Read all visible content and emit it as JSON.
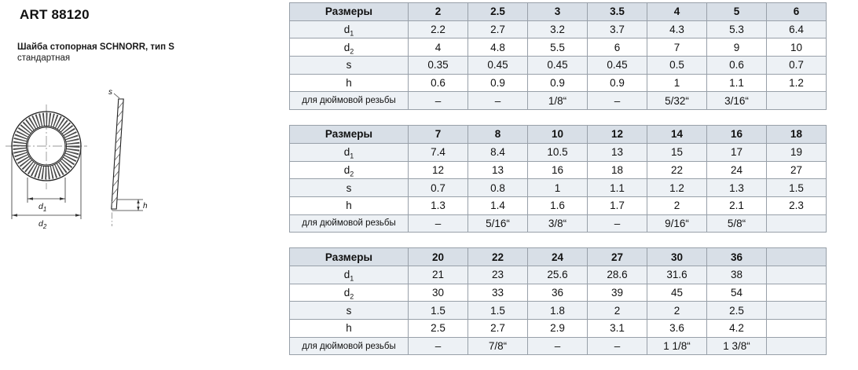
{
  "page": {
    "art_number": "ART 88120",
    "product_name": "Шайба стопорная SCHNORR, тип S",
    "product_variant": "стандартная"
  },
  "drawing": {
    "d1_label": "d",
    "d1_sub": "1",
    "d2_label": "d",
    "d2_sub": "2",
    "s_label": "s",
    "h_label": "h"
  },
  "tables": [
    {
      "corner_label": "Размеры",
      "columns": [
        "2",
        "2.5",
        "3",
        "3.5",
        "4",
        "5",
        "6"
      ],
      "rows": [
        {
          "label": "d",
          "sub": "1",
          "values": [
            "2.2",
            "2.7",
            "3.2",
            "3.7",
            "4.3",
            "5.3",
            "6.4"
          ]
        },
        {
          "label": "d",
          "sub": "2",
          "values": [
            "4",
            "4.8",
            "5.5",
            "6",
            "7",
            "9",
            "10"
          ]
        },
        {
          "label": "s",
          "sub": "",
          "values": [
            "0.35",
            "0.45",
            "0.45",
            "0.45",
            "0.5",
            "0.6",
            "0.7"
          ]
        },
        {
          "label": "h",
          "sub": "",
          "values": [
            "0.6",
            "0.9",
            "0.9",
            "0.9",
            "1",
            "1.1",
            "1.2"
          ]
        },
        {
          "label": "для дюймовой резьбы",
          "sub": "",
          "values": [
            "–",
            "–",
            "1/8“",
            "–",
            "5/32“",
            "3/16“",
            ""
          ]
        }
      ]
    },
    {
      "corner_label": "Размеры",
      "columns": [
        "7",
        "8",
        "10",
        "12",
        "14",
        "16",
        "18"
      ],
      "rows": [
        {
          "label": "d",
          "sub": "1",
          "values": [
            "7.4",
            "8.4",
            "10.5",
            "13",
            "15",
            "17",
            "19"
          ]
        },
        {
          "label": "d",
          "sub": "2",
          "values": [
            "12",
            "13",
            "16",
            "18",
            "22",
            "24",
            "27"
          ]
        },
        {
          "label": "s",
          "sub": "",
          "values": [
            "0.7",
            "0.8",
            "1",
            "1.1",
            "1.2",
            "1.3",
            "1.5"
          ]
        },
        {
          "label": "h",
          "sub": "",
          "values": [
            "1.3",
            "1.4",
            "1.6",
            "1.7",
            "2",
            "2.1",
            "2.3"
          ]
        },
        {
          "label": "для дюймовой резьбы",
          "sub": "",
          "values": [
            "–",
            "5/16“",
            "3/8“",
            "–",
            "9/16“",
            "5/8“",
            ""
          ]
        }
      ]
    },
    {
      "corner_label": "Размеры",
      "columns": [
        "20",
        "22",
        "24",
        "27",
        "30",
        "36",
        ""
      ],
      "rows": [
        {
          "label": "d",
          "sub": "1",
          "values": [
            "21",
            "23",
            "25.6",
            "28.6",
            "31.6",
            "38",
            ""
          ]
        },
        {
          "label": "d",
          "sub": "2",
          "values": [
            "30",
            "33",
            "36",
            "39",
            "45",
            "54",
            ""
          ]
        },
        {
          "label": "s",
          "sub": "",
          "values": [
            "1.5",
            "1.5",
            "1.8",
            "2",
            "2",
            "2.5",
            ""
          ]
        },
        {
          "label": "h",
          "sub": "",
          "values": [
            "2.5",
            "2.7",
            "2.9",
            "3.1",
            "3.6",
            "4.2",
            ""
          ]
        },
        {
          "label": "для дюймовой резьбы",
          "sub": "",
          "values": [
            "–",
            "7/8“",
            "–",
            "–",
            "1 1/8“",
            "1 3/8“",
            ""
          ]
        }
      ]
    }
  ]
}
